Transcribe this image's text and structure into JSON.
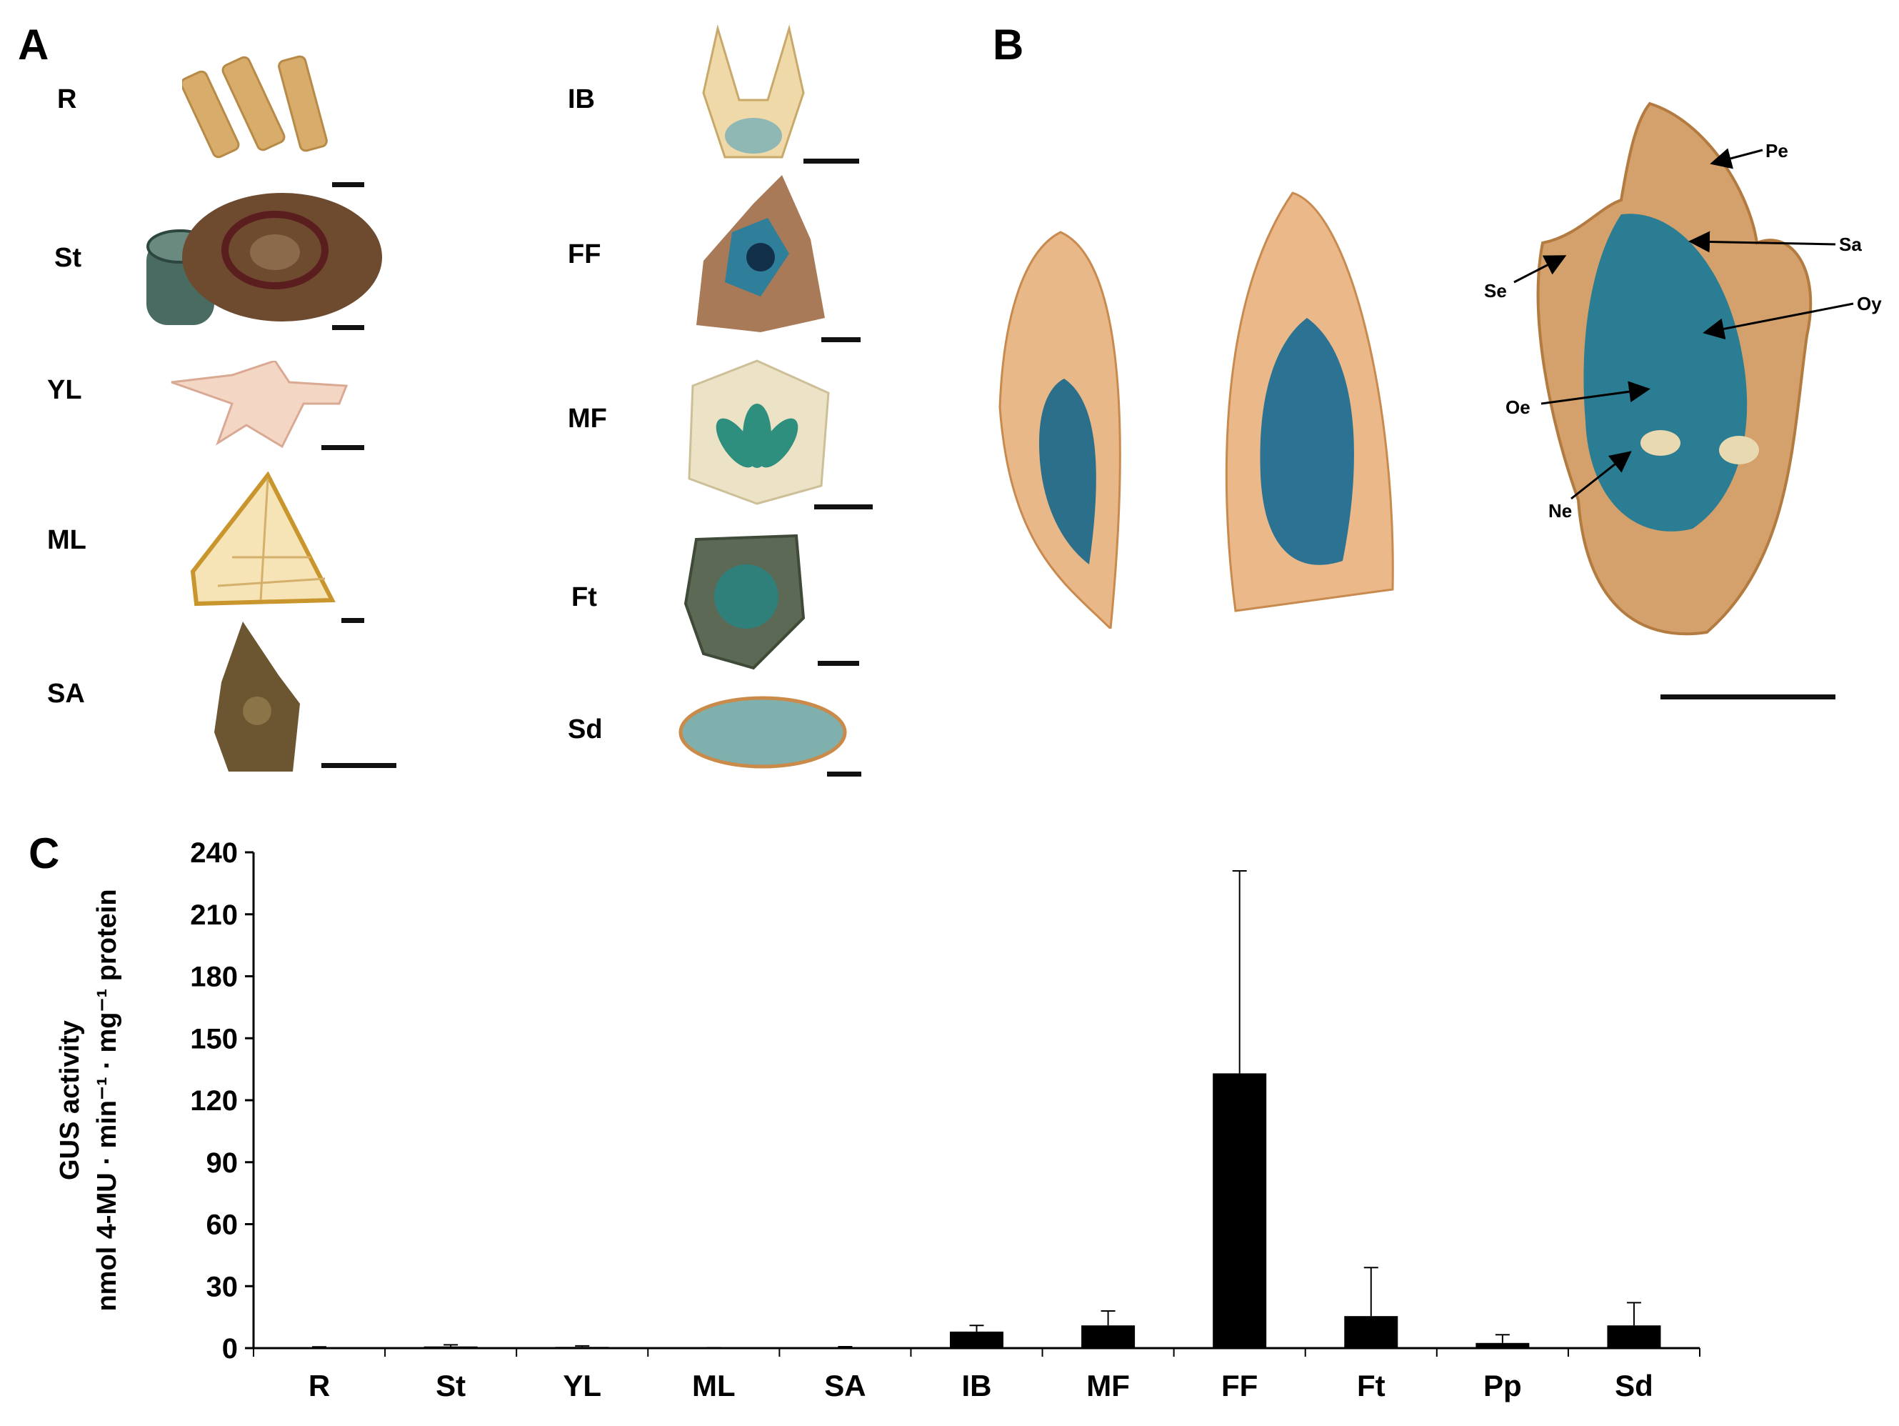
{
  "panels": {
    "a_label": "A",
    "b_label": "B",
    "c_label": "C"
  },
  "panel_a": {
    "tissues_left": [
      "R",
      "St",
      "YL",
      "ML",
      "SA"
    ],
    "tissues_right": [
      "IB",
      "FF",
      "MF",
      "Ft",
      "Sd"
    ]
  },
  "panel_b": {
    "parts": [
      "Pe",
      "Sa",
      "Se",
      "Oy",
      "Oe",
      "Ne"
    ]
  },
  "colors": {
    "bar": "#000000",
    "gus_blue": "#2a7f8f",
    "tissue_tan": "#d9a468"
  },
  "chart_data": {
    "type": "bar",
    "categories": [
      "R",
      "St",
      "YL",
      "ML",
      "SA",
      "IB",
      "MF",
      "FF",
      "Ft",
      "Pp",
      "Sd"
    ],
    "values": [
      0.3,
      0.8,
      0.6,
      0.1,
      0.3,
      8,
      11,
      133,
      15.5,
      2.5,
      11
    ],
    "errors": [
      0.3,
      0.8,
      0.5,
      0.1,
      0.4,
      3,
      7,
      98,
      23.5,
      4,
      11
    ],
    "ylabel_line1": "GUS activity",
    "ylabel_line2": "nmol 4-MU · min⁻¹ · mg⁻¹ protein",
    "yticks": [
      0,
      30,
      60,
      90,
      120,
      150,
      180,
      210,
      240
    ],
    "ylim": [
      0,
      240
    ],
    "grid": false
  }
}
